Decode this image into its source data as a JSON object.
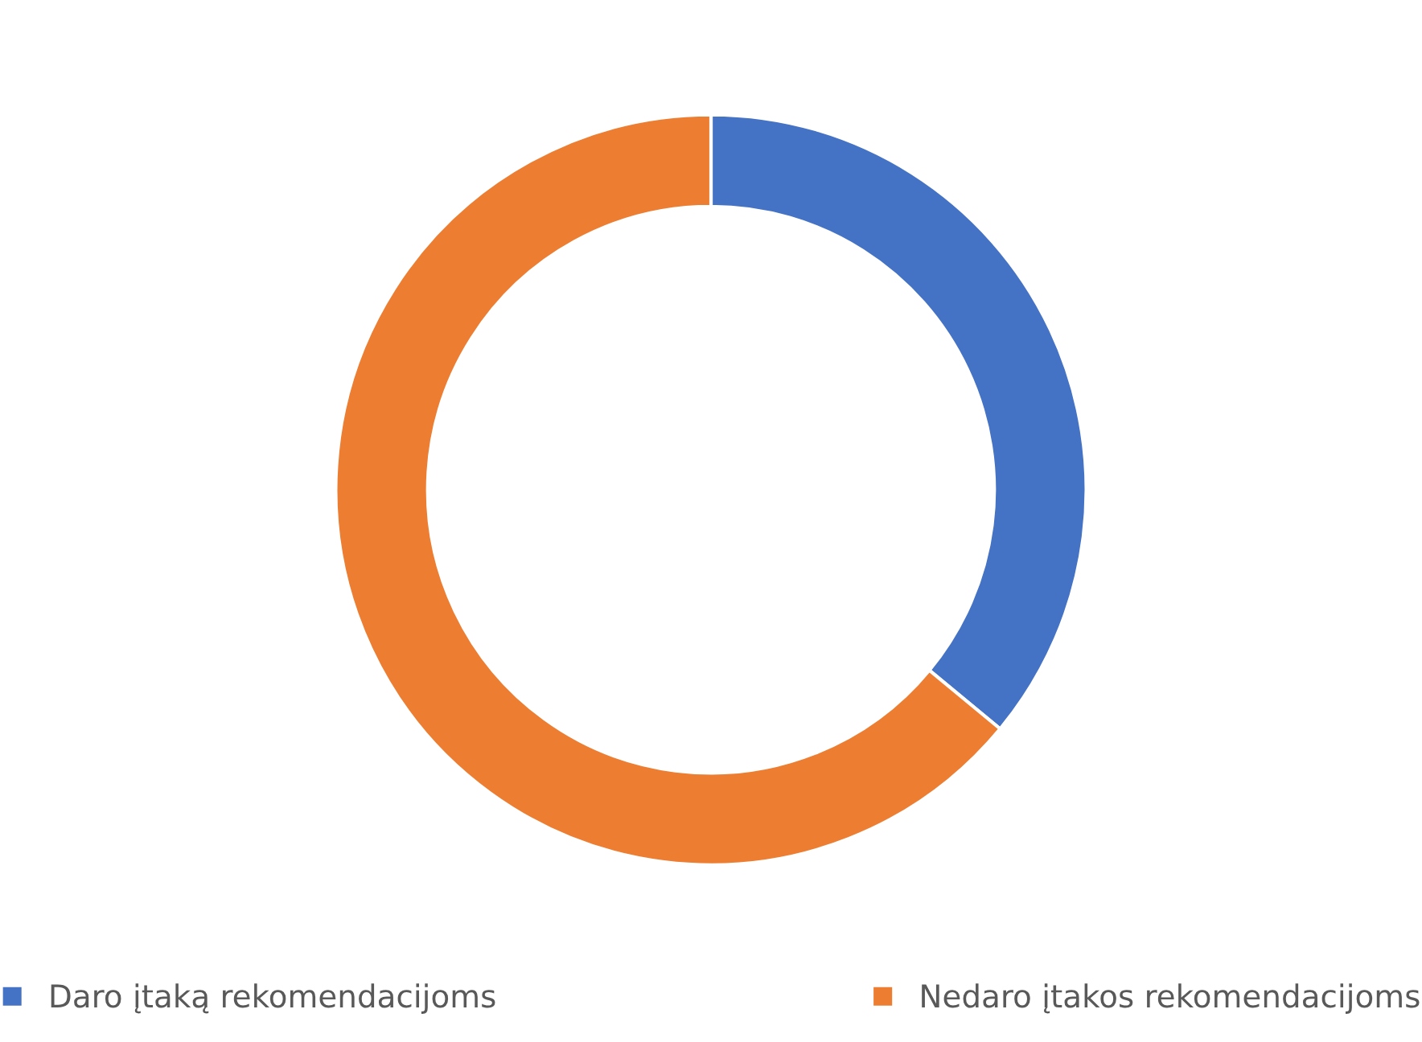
{
  "chart_data": {
    "type": "donut",
    "categories": [
      "Daro įtaką rekomendacijoms",
      "Nedaro įtakos rekomendacijoms"
    ],
    "values": [
      36,
      64
    ],
    "colors": [
      "#4472c4",
      "#ed7d31"
    ],
    "legend": "bottom"
  }
}
